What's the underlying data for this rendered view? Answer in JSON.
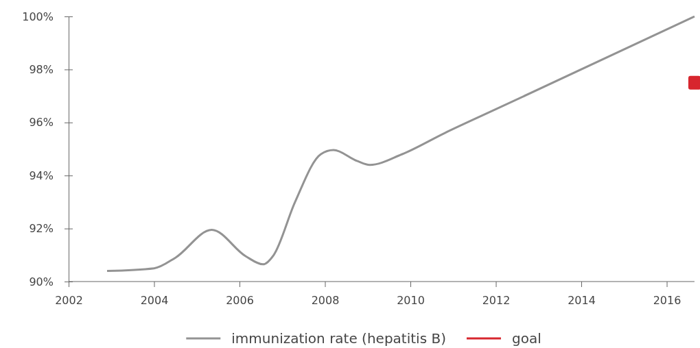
{
  "chart_data": {
    "type": "line",
    "x": [
      2002.9,
      2004.0,
      2004.5,
      2005.35,
      2006.15,
      2006.55,
      2006.8,
      2007.3,
      2007.9,
      2008.2,
      2008.75,
      2009.05,
      2009.8,
      2010.8,
      2012,
      2016.65
    ],
    "series": [
      {
        "name": "immunization rate (hepatitis B)",
        "color": "#939393",
        "values": [
          90.4,
          90.5,
          90.9,
          91.95,
          90.95,
          90.65,
          91.0,
          93.0,
          94.8,
          94.96,
          94.55,
          94.4,
          94.8,
          95.6,
          96.5,
          100
        ]
      },
      {
        "name": "goal",
        "type": "scatter",
        "marker": "square",
        "color": "#d7262e",
        "x": [
          2016.65
        ],
        "values": [
          97.5
        ]
      }
    ],
    "xlim": [
      2002,
      2016.65
    ],
    "xticks": [
      2002,
      2004,
      2006,
      2008,
      2010,
      2012,
      2014,
      2016
    ],
    "ylim": [
      90,
      100
    ],
    "yticks": [
      {
        "value": 90,
        "label": "90%"
      },
      {
        "value": 92,
        "label": "92%"
      },
      {
        "value": 94,
        "label": "94%"
      },
      {
        "value": 96,
        "label": "96%"
      },
      {
        "value": 98,
        "label": "98%"
      },
      {
        "value": 100,
        "label": "100%"
      }
    ],
    "grid": false,
    "legend": "bottom",
    "line_style": "solid",
    "marker": "none"
  }
}
